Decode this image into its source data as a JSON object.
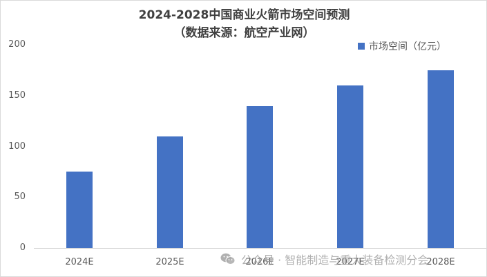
{
  "chart_data": {
    "type": "bar",
    "title": "2024-2028中国商业火箭市场空间预测",
    "subtitle": "（数据来源：航空产业网）",
    "categories": [
      "2024E",
      "2025E",
      "2026E",
      "2027E",
      "2028E"
    ],
    "series": [
      {
        "name": "市场空间（亿元）",
        "values": [
          75,
          110,
          140,
          160,
          175
        ],
        "color": "#4472c4"
      }
    ],
    "xlabel": "",
    "ylabel": "",
    "ylim": [
      0,
      200
    ],
    "yticks": [
      0,
      50,
      100,
      150,
      200
    ],
    "grid": false,
    "legend_position": "top-right"
  },
  "title": {
    "line1": "2024-2028中国商业火箭市场空间预测",
    "line2": "（数据来源：航空产业网）"
  },
  "legend": {
    "label": "市场空间（亿元）",
    "color": "#4472c4"
  },
  "y_axis": {
    "ticks": [
      "200",
      "150",
      "100",
      "50",
      "0"
    ]
  },
  "x_axis": {
    "ticks": [
      "2024E",
      "2025E",
      "2026E",
      "2027E",
      "2028E"
    ]
  },
  "watermark": {
    "icon": "wechat-icon",
    "text": "公众号 · 智能制造与重大装备检测分会"
  }
}
